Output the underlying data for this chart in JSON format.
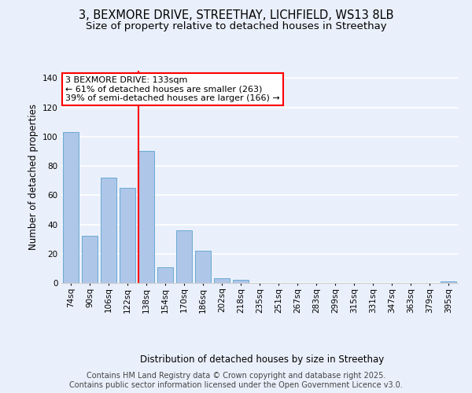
{
  "title_line1": "3, BEXMORE DRIVE, STREETHAY, LICHFIELD, WS13 8LB",
  "title_line2": "Size of property relative to detached houses in Streethay",
  "xlabel": "Distribution of detached houses by size in Streethay",
  "ylabel": "Number of detached properties",
  "categories": [
    "74sq",
    "90sq",
    "106sq",
    "122sq",
    "138sq",
    "154sq",
    "170sq",
    "186sq",
    "202sq",
    "218sq",
    "235sq",
    "251sq",
    "267sq",
    "283sq",
    "299sq",
    "315sq",
    "331sq",
    "347sq",
    "363sq",
    "379sq",
    "395sq"
  ],
  "values": [
    103,
    32,
    72,
    65,
    90,
    11,
    36,
    22,
    3,
    2,
    0,
    0,
    0,
    0,
    0,
    0,
    0,
    0,
    0,
    0,
    1
  ],
  "bar_color": "#aec6e8",
  "bar_edge_color": "#6aaad4",
  "vline_index": 4,
  "vline_color": "red",
  "annotation_text": "3 BEXMORE DRIVE: 133sqm\n← 61% of detached houses are smaller (263)\n39% of semi-detached houses are larger (166) →",
  "annotation_box_color": "white",
  "annotation_box_edge_color": "red",
  "ylim": [
    0,
    145
  ],
  "yticks": [
    0,
    20,
    40,
    60,
    80,
    100,
    120,
    140
  ],
  "footer_text": "Contains HM Land Registry data © Crown copyright and database right 2025.\nContains public sector information licensed under the Open Government Licence v3.0.",
  "background_color": "#eaf0fb",
  "plot_background_color": "#eaf0fb",
  "grid_color": "#ffffff",
  "title_fontsize": 10.5,
  "subtitle_fontsize": 9.5,
  "axis_label_fontsize": 8.5,
  "tick_fontsize": 7.5,
  "annotation_fontsize": 8,
  "footer_fontsize": 7
}
